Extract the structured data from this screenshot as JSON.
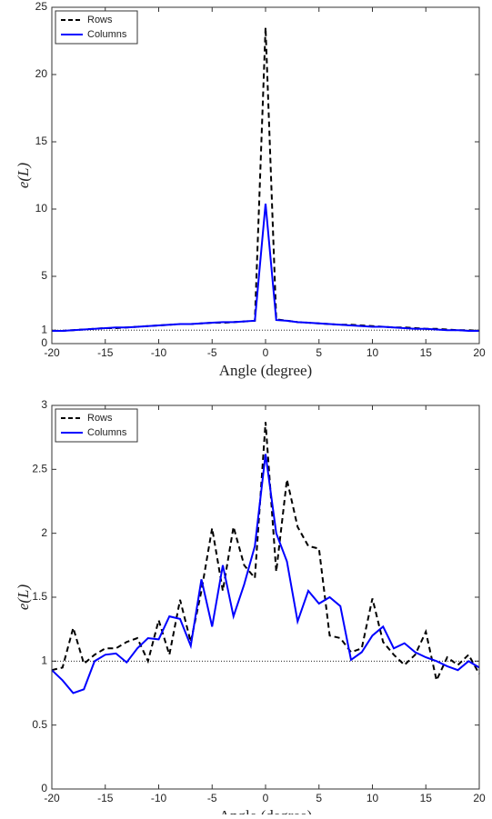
{
  "chart_data": [
    {
      "type": "line",
      "xlabel": "Angle (degree)",
      "ylabel": "e(L)",
      "x": [
        -20,
        -19,
        -18,
        -17,
        -16,
        -15,
        -14,
        -13,
        -12,
        -11,
        -10,
        -9,
        -8,
        -7,
        -6,
        -5,
        -4,
        -3,
        -2,
        -1,
        0,
        1,
        2,
        3,
        4,
        5,
        6,
        7,
        8,
        9,
        10,
        11,
        12,
        13,
        14,
        15,
        16,
        17,
        18,
        19,
        20
      ],
      "series": [
        {
          "name": "Rows",
          "color": "#000000",
          "linestyle": "dashed",
          "values": [
            0.95,
            0.95,
            1.0,
            1.05,
            1.1,
            1.15,
            1.15,
            1.2,
            1.25,
            1.3,
            1.35,
            1.4,
            1.45,
            1.45,
            1.5,
            1.55,
            1.55,
            1.6,
            1.65,
            1.7,
            23.5,
            1.8,
            1.7,
            1.6,
            1.55,
            1.5,
            1.45,
            1.4,
            1.4,
            1.35,
            1.3,
            1.25,
            1.2,
            1.2,
            1.15,
            1.1,
            1.1,
            1.05,
            1.0,
            1.0,
            0.95
          ]
        },
        {
          "name": "Columns",
          "color": "#0000ff",
          "linestyle": "solid",
          "values": [
            0.95,
            0.95,
            1.0,
            1.05,
            1.1,
            1.15,
            1.2,
            1.2,
            1.25,
            1.3,
            1.35,
            1.4,
            1.45,
            1.45,
            1.5,
            1.55,
            1.6,
            1.6,
            1.65,
            1.7,
            10.4,
            1.75,
            1.7,
            1.6,
            1.55,
            1.5,
            1.45,
            1.4,
            1.35,
            1.3,
            1.25,
            1.25,
            1.2,
            1.15,
            1.1,
            1.1,
            1.05,
            1.0,
            1.0,
            0.95,
            0.95
          ]
        }
      ],
      "xlim": [
        -20,
        20
      ],
      "xticks": [
        -20,
        -15,
        -10,
        -5,
        0,
        5,
        10,
        15,
        20
      ],
      "ylim": [
        0,
        25
      ],
      "yticks": [
        0,
        1,
        5,
        10,
        15,
        20,
        25
      ],
      "hline": 1,
      "legend": "top-left"
    },
    {
      "type": "line",
      "xlabel": "Angle (degree)",
      "ylabel": "e(L)",
      "x": [
        -20,
        -19,
        -18,
        -17,
        -16,
        -15,
        -14,
        -13,
        -12,
        -11,
        -10,
        -9,
        -8,
        -7,
        -6,
        -5,
        -4,
        -3,
        -2,
        -1,
        0,
        1,
        2,
        3,
        4,
        5,
        6,
        7,
        8,
        9,
        10,
        11,
        12,
        13,
        14,
        15,
        16,
        17,
        18,
        19,
        20
      ],
      "series": [
        {
          "name": "Rows",
          "color": "#000000",
          "linestyle": "dashed",
          "values": [
            0.93,
            0.95,
            1.26,
            0.98,
            1.05,
            1.1,
            1.1,
            1.15,
            1.18,
            1.0,
            1.32,
            1.05,
            1.48,
            1.15,
            1.55,
            2.04,
            1.55,
            2.05,
            1.75,
            1.65,
            2.87,
            1.7,
            2.42,
            2.05,
            1.9,
            1.88,
            1.2,
            1.18,
            1.07,
            1.1,
            1.49,
            1.15,
            1.05,
            0.97,
            1.05,
            1.23,
            0.85,
            1.03,
            0.97,
            1.05,
            0.9
          ]
        },
        {
          "name": "Columns",
          "color": "#0000ff",
          "linestyle": "solid",
          "values": [
            0.93,
            0.85,
            0.75,
            0.78,
            1.0,
            1.05,
            1.06,
            0.99,
            1.1,
            1.18,
            1.17,
            1.35,
            1.33,
            1.12,
            1.64,
            1.27,
            1.75,
            1.35,
            1.6,
            1.9,
            2.62,
            2.0,
            1.78,
            1.31,
            1.55,
            1.45,
            1.5,
            1.43,
            1.01,
            1.07,
            1.2,
            1.27,
            1.1,
            1.14,
            1.07,
            1.03,
            1.0,
            0.96,
            0.93,
            1.0,
            0.95
          ]
        }
      ],
      "xlim": [
        -20,
        20
      ],
      "xticks": [
        -20,
        -15,
        -10,
        -5,
        0,
        5,
        10,
        15,
        20
      ],
      "ylim": [
        0,
        3
      ],
      "yticks": [
        0,
        0.5,
        1,
        1.5,
        2,
        2.5,
        3
      ],
      "hline": 1,
      "legend": "top-left"
    }
  ]
}
